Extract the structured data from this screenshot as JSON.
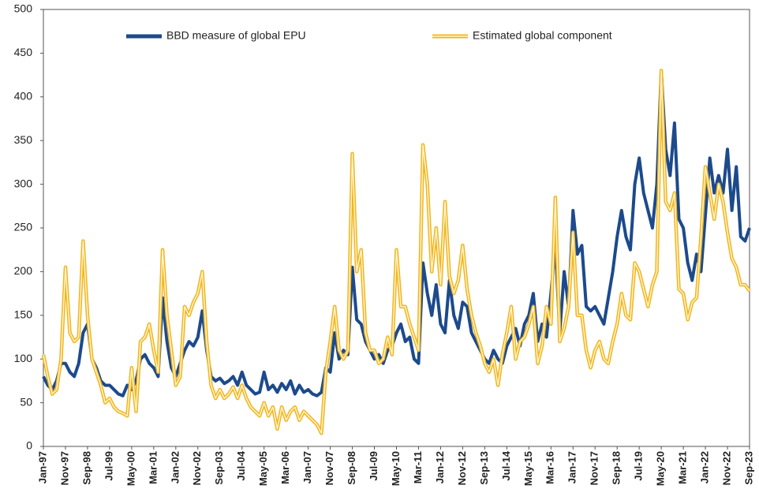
{
  "chart_data": {
    "type": "line",
    "categories": [
      "Jan-97",
      null,
      null,
      null,
      null,
      "Nov-97",
      null,
      null,
      null,
      null,
      "Sep-98",
      null,
      null,
      null,
      null,
      "Jul-99",
      null,
      null,
      null,
      null,
      "May-00",
      null,
      null,
      null,
      null,
      "Mar-01",
      null,
      null,
      null,
      null,
      "Jan-02",
      null,
      null,
      null,
      null,
      "Nov-02",
      null,
      null,
      null,
      null,
      "Sep-03",
      null,
      null,
      null,
      null,
      "Jul-04",
      null,
      null,
      null,
      null,
      "May-05",
      null,
      null,
      null,
      null,
      "Mar-06",
      null,
      null,
      null,
      null,
      "Jan-07",
      null,
      null,
      null,
      null,
      "Nov-07",
      null,
      null,
      null,
      null,
      "Sep-08",
      null,
      null,
      null,
      null,
      "Jul-09",
      null,
      null,
      null,
      null,
      "May-10",
      null,
      null,
      null,
      null,
      "Mar-11",
      null,
      null,
      null,
      null,
      "Jan-12",
      null,
      null,
      null,
      null,
      "Nov-12",
      null,
      null,
      null,
      null,
      "Sep-13",
      null,
      null,
      null,
      null,
      "Jul-14",
      null,
      null,
      null,
      null,
      "May-15",
      null,
      null,
      null,
      null,
      "Mar-16",
      null,
      null,
      null,
      null,
      "Jan-17",
      null,
      null,
      null,
      null,
      "Nov-17",
      null,
      null,
      null,
      null,
      "Sep-18",
      null,
      null,
      null,
      null,
      "Jul-19",
      null,
      null,
      null,
      null,
      "May-20",
      null,
      null,
      null,
      null,
      "Mar-21",
      null,
      null,
      null,
      null,
      "Jan-22",
      null,
      null,
      null,
      null,
      "Nov-22",
      null,
      null,
      null,
      null,
      "Sep-23"
    ],
    "series": [
      {
        "name": "BBD measure of global EPU",
        "color": "#1c4a8c",
        "values": [
          80,
          70,
          65,
          75,
          95,
          95,
          85,
          80,
          95,
          130,
          140,
          100,
          90,
          75,
          70,
          70,
          65,
          60,
          58,
          70,
          65,
          75,
          100,
          105,
          95,
          90,
          80,
          170,
          120,
          90,
          80,
          95,
          110,
          120,
          115,
          125,
          155,
          110,
          80,
          75,
          78,
          72,
          75,
          80,
          70,
          85,
          70,
          65,
          60,
          62,
          85,
          65,
          70,
          62,
          72,
          65,
          75,
          60,
          70,
          62,
          65,
          60,
          58,
          62,
          90,
          85,
          130,
          100,
          110,
          105,
          205,
          145,
          140,
          120,
          110,
          100,
          105,
          95,
          110,
          115,
          130,
          140,
          120,
          125,
          100,
          95,
          210,
          175,
          150,
          185,
          140,
          130,
          190,
          150,
          135,
          165,
          160,
          130,
          120,
          110,
          100,
          95,
          110,
          100,
          95,
          115,
          125,
          135,
          115,
          140,
          150,
          175,
          120,
          140,
          125,
          175,
          230,
          130,
          200,
          160,
          270,
          220,
          230,
          160,
          155,
          160,
          150,
          140,
          170,
          200,
          240,
          270,
          240,
          225,
          300,
          330,
          290,
          270,
          250,
          300,
          430,
          340,
          310,
          370,
          260,
          250,
          210,
          190,
          220,
          200,
          265,
          330,
          290,
          310,
          290,
          340,
          270,
          320,
          240,
          235,
          250
        ]
      },
      {
        "name": "Estimated global component",
        "color": "#f2b51c",
        "line_style": "double",
        "values": [
          105,
          80,
          60,
          65,
          100,
          205,
          130,
          120,
          125,
          235,
          150,
          100,
          85,
          70,
          50,
          55,
          45,
          40,
          38,
          35,
          90,
          40,
          120,
          125,
          140,
          110,
          85,
          225,
          150,
          110,
          70,
          80,
          160,
          150,
          165,
          175,
          200,
          120,
          70,
          55,
          65,
          55,
          60,
          68,
          55,
          70,
          55,
          45,
          40,
          35,
          50,
          35,
          45,
          20,
          45,
          30,
          40,
          45,
          30,
          40,
          35,
          30,
          25,
          15,
          85,
          120,
          160,
          110,
          100,
          110,
          335,
          200,
          225,
          130,
          110,
          110,
          95,
          100,
          125,
          105,
          225,
          160,
          160,
          140,
          125,
          110,
          345,
          300,
          200,
          250,
          185,
          280,
          195,
          175,
          190,
          230,
          180,
          150,
          130,
          115,
          95,
          85,
          100,
          70,
          105,
          130,
          160,
          100,
          120,
          125,
          140,
          160,
          95,
          115,
          160,
          140,
          285,
          120,
          135,
          160,
          245,
          150,
          150,
          110,
          90,
          110,
          120,
          100,
          95,
          120,
          140,
          175,
          150,
          145,
          210,
          200,
          180,
          160,
          185,
          200,
          430,
          280,
          270,
          290,
          180,
          175,
          145,
          165,
          170,
          240,
          320,
          290,
          260,
          300,
          280,
          245,
          215,
          205,
          185,
          185,
          178
        ]
      }
    ],
    "ylim": [
      0,
      500
    ],
    "yticks": [
      0,
      50,
      100,
      150,
      200,
      250,
      300,
      350,
      400,
      450,
      500
    ]
  }
}
